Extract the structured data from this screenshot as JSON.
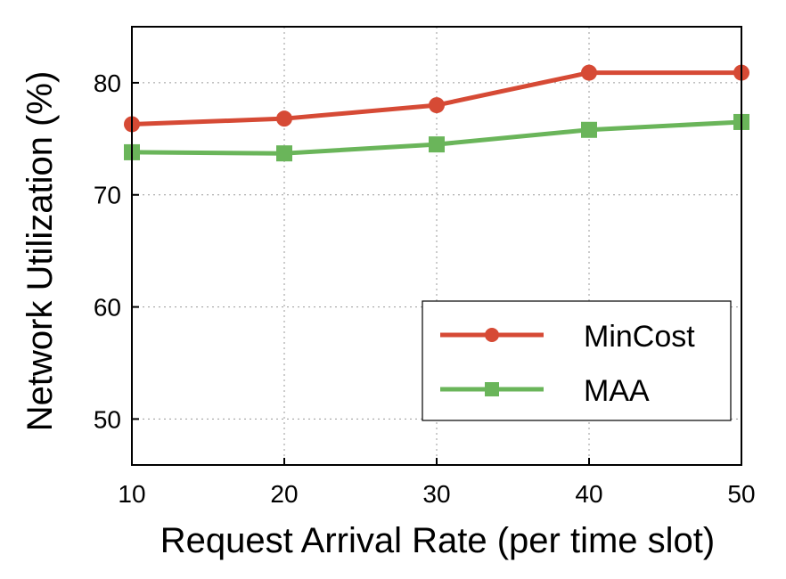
{
  "chart_data": {
    "type": "line",
    "xlabel": "Request Arrival Rate (per time slot)",
    "ylabel": "Network Utilization (%)",
    "x": [
      10,
      20,
      30,
      40,
      50
    ],
    "xlim": [
      10,
      50
    ],
    "ylim": [
      45.9,
      85
    ],
    "xticks": [
      10,
      20,
      30,
      40,
      50
    ],
    "yticks": [
      50,
      60,
      70,
      80
    ],
    "grid": true,
    "legend_position": "lower-right",
    "series": [
      {
        "name": "MinCost",
        "values": [
          76.3,
          76.8,
          78.0,
          80.9,
          80.9
        ],
        "color": "#d64a35",
        "marker": "circle"
      },
      {
        "name": "MAA",
        "values": [
          73.8,
          73.7,
          74.5,
          75.8,
          76.5
        ],
        "color": "#6ab55a",
        "marker": "square"
      }
    ]
  }
}
